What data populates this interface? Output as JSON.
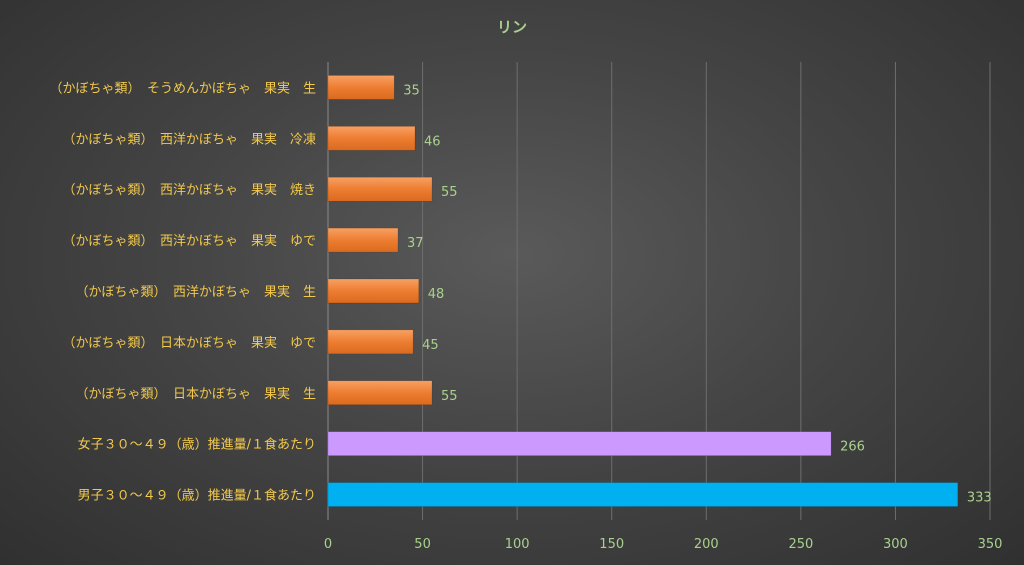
{
  "chart_data": {
    "type": "bar",
    "orientation": "horizontal",
    "title": "リン",
    "categories": [
      "（かぼちゃ類）　そうめんかぼちゃ　果実　生",
      "（かぼちゃ類）　西洋かぼちゃ　果実　冷凍",
      "（かぼちゃ類）　西洋かぼちゃ　果実　焼き",
      "（かぼちゃ類）　西洋かぼちゃ　果実　ゆで",
      "（かぼちゃ類）　西洋かぼちゃ　果実　生",
      "（かぼちゃ類）　日本かぼちゃ　果実　ゆで",
      "（かぼちゃ類）　日本かぼちゃ　果実　生",
      "女子３０～４９（歳）推進量/１食あたり",
      "男子３０～４９（歳）推進量/１食あたり"
    ],
    "values": [
      35,
      46,
      55,
      37,
      48,
      45,
      55,
      266,
      333
    ],
    "bar_colors": [
      "#ed7d31",
      "#ed7d31",
      "#ed7d31",
      "#ed7d31",
      "#ed7d31",
      "#ed7d31",
      "#ed7d31",
      "#cc99ff",
      "#00b0f0"
    ],
    "xlim": [
      0,
      350
    ],
    "xticks": [
      0,
      50,
      100,
      150,
      200,
      250,
      300,
      350
    ],
    "grid": true,
    "legend": "none",
    "data_labels": true
  }
}
